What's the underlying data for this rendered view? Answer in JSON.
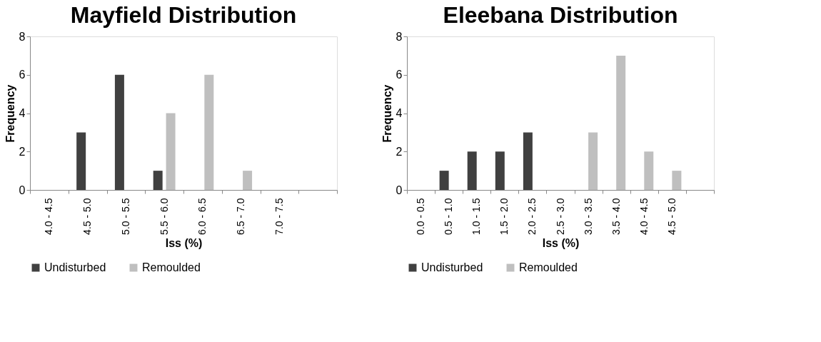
{
  "chart_data": [
    {
      "type": "bar",
      "title": "Mayfield Distribution",
      "xlabel": "Iss (%)",
      "ylabel": "Frequency",
      "categories": [
        "4.0 - 4.5",
        "4.5 - 5.0",
        "5.0 - 5.5",
        "5.5 - 6.0",
        "6.0 - 6.5",
        "6.5 - 7.0",
        "7.0 - 7.5",
        null
      ],
      "series": [
        {
          "name": "Undisturbed",
          "color": "#404040",
          "values": [
            0,
            3,
            6,
            1,
            0,
            0,
            0,
            null
          ]
        },
        {
          "name": "Remoulded",
          "color": "#bfbfbf",
          "values": [
            0,
            0,
            0,
            4,
            6,
            1,
            0,
            null
          ]
        }
      ],
      "ylim": [
        0,
        8
      ],
      "yticks": [
        0,
        2,
        4,
        6,
        8
      ],
      "grid": false,
      "legend": "bottom"
    },
    {
      "type": "bar",
      "title": "Eleebana Distribution",
      "xlabel": "Iss (%)",
      "ylabel": "Frequency",
      "categories": [
        "0.0 - 0.5",
        "0.5 - 1.0",
        "1.0 - 1.5",
        "1.5 - 2.0",
        "2.0 - 2.5",
        "2.5 - 3.0",
        "3.0 - 3.5",
        "3.5 - 4.0",
        "4.0 - 4.5",
        "4.5 - 5.0",
        null
      ],
      "series": [
        {
          "name": "Undisturbed",
          "color": "#404040",
          "values": [
            0,
            1,
            2,
            2,
            3,
            0,
            0,
            0,
            0,
            0,
            null
          ]
        },
        {
          "name": "Remoulded",
          "color": "#bfbfbf",
          "values": [
            0,
            0,
            0,
            0,
            0,
            0,
            3,
            7,
            2,
            1,
            null
          ]
        }
      ],
      "ylim": [
        0,
        8
      ],
      "yticks": [
        0,
        2,
        4,
        6,
        8
      ],
      "grid": false,
      "legend": "bottom"
    }
  ]
}
